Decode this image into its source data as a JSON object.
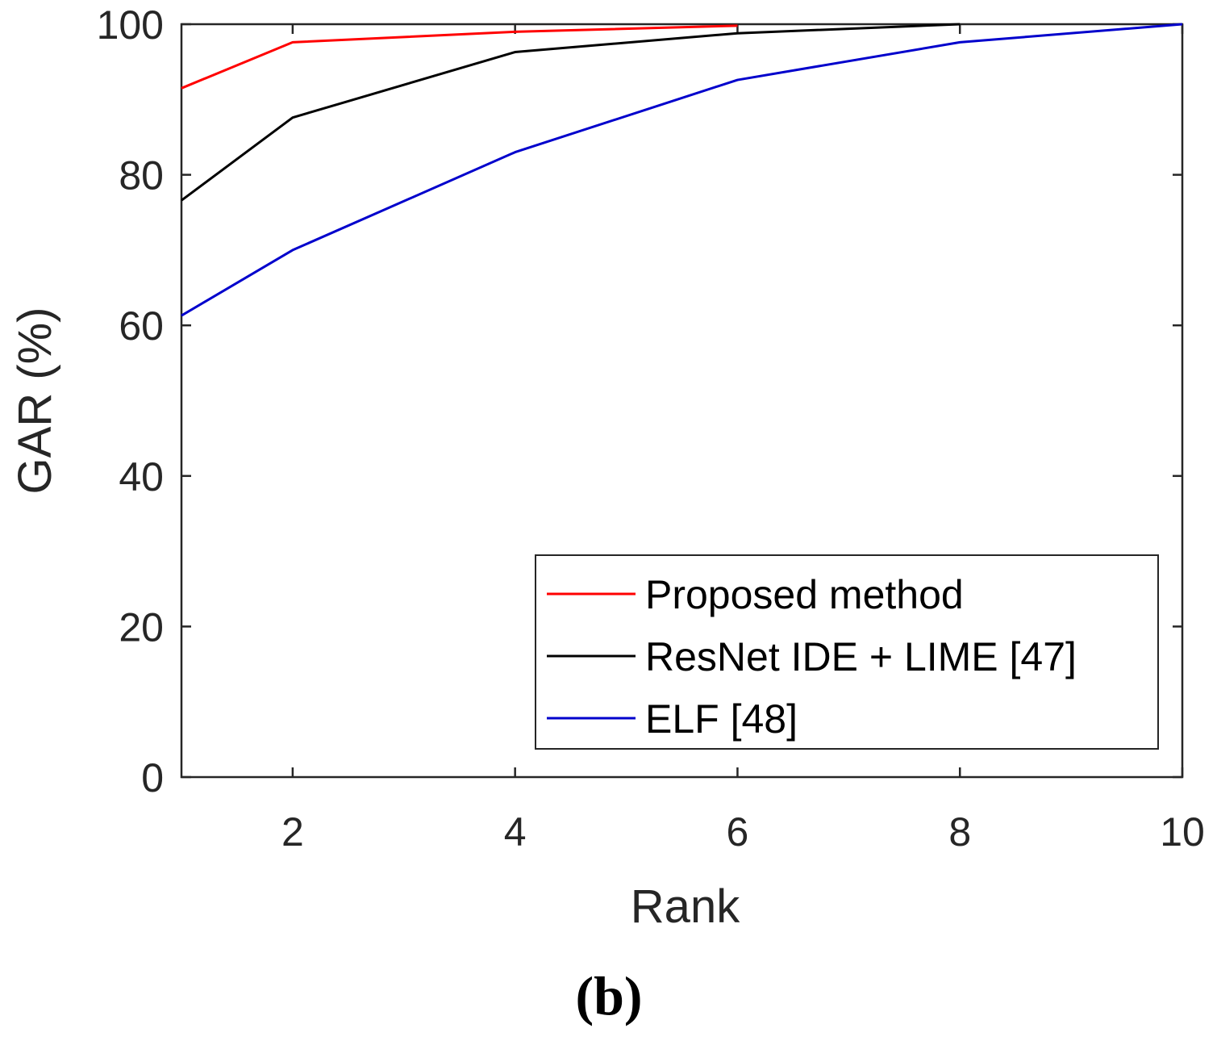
{
  "chart_data": {
    "type": "line",
    "title": "",
    "xlabel": "Rank",
    "ylabel": "GAR (%)",
    "xlim": [
      1,
      10
    ],
    "ylim": [
      0,
      100
    ],
    "xticks": [
      2,
      4,
      6,
      8,
      10
    ],
    "yticks": [
      0,
      20,
      40,
      60,
      80,
      100
    ],
    "grid": false,
    "legend_position": "bottom-right",
    "series": [
      {
        "name": "Proposed method",
        "color": "#ff0000",
        "x": [
          1,
          2,
          4,
          6
        ],
        "y": [
          91.5,
          97.6,
          99.0,
          99.8
        ]
      },
      {
        "name": "ResNet IDE + LIME [47]",
        "color": "#000000",
        "x": [
          1,
          2,
          4,
          6,
          8
        ],
        "y": [
          76.6,
          87.6,
          96.3,
          98.8,
          100
        ]
      },
      {
        "name": "ELF [48]",
        "color": "#0000cc",
        "x": [
          1,
          2,
          4,
          6,
          8,
          10
        ],
        "y": [
          61.3,
          70.0,
          83.0,
          92.6,
          97.6,
          100
        ]
      }
    ],
    "panel_label": "(b)"
  }
}
